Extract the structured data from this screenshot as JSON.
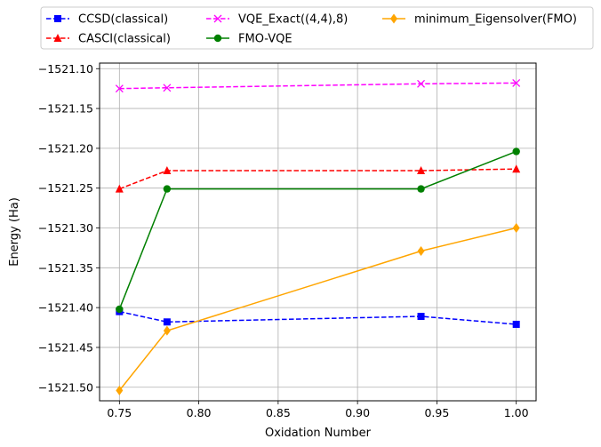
{
  "chart_data": {
    "type": "line",
    "xlabel": "Oxidation Number",
    "ylabel": "Energy (Ha)",
    "xlim": [
      0.7375,
      1.0125
    ],
    "ylim": [
      -1521.517,
      -1521.093
    ],
    "x_ticks": [
      0.75,
      0.8,
      0.85,
      0.9,
      0.95,
      1.0
    ],
    "x_tick_labels": [
      "0.75",
      "0.80",
      "0.85",
      "0.90",
      "0.95",
      "1.00"
    ],
    "y_ticks": [
      -1521.1,
      -1521.15,
      -1521.2,
      -1521.25,
      -1521.3,
      -1521.35,
      -1521.4,
      -1521.45,
      -1521.5
    ],
    "y_tick_labels": [
      "−1521.10",
      "−1521.15",
      "−1521.20",
      "−1521.25",
      "−1521.30",
      "−1521.35",
      "−1521.40",
      "−1521.45",
      "−1521.50"
    ],
    "grid": true,
    "legend_position": "top-center, outside plot",
    "series": [
      {
        "name": "CCSD(classical)",
        "color": "#0000ff",
        "linestyle": "dashed",
        "marker": "square",
        "x": [
          0.75,
          0.78,
          0.94,
          1.0
        ],
        "y": [
          -1521.405,
          -1521.418,
          -1521.411,
          -1521.421
        ]
      },
      {
        "name": "CASCI(classical)",
        "color": "#ff0000",
        "linestyle": "dashed",
        "marker": "triangle",
        "x": [
          0.75,
          0.78,
          0.94,
          1.0
        ],
        "y": [
          -1521.251,
          -1521.228,
          -1521.228,
          -1521.226
        ]
      },
      {
        "name": "VQE_Exact((4,4),8)",
        "color": "#ff00ff",
        "linestyle": "dashed",
        "marker": "x",
        "x": [
          0.75,
          0.78,
          0.94,
          1.0
        ],
        "y": [
          -1521.125,
          -1521.124,
          -1521.119,
          -1521.118
        ]
      },
      {
        "name": "FMO-VQE",
        "color": "#008000",
        "linestyle": "solid",
        "marker": "circle",
        "x": [
          0.75,
          0.78,
          0.94,
          1.0
        ],
        "y": [
          -1521.402,
          -1521.251,
          -1521.251,
          -1521.204
        ]
      },
      {
        "name": "minimum_Eigensolver(FMO)",
        "color": "#ffa500",
        "linestyle": "solid",
        "marker": "diamond",
        "x": [
          0.75,
          0.78,
          0.94,
          1.0
        ],
        "y": [
          -1521.504,
          -1521.429,
          -1521.329,
          -1521.3
        ]
      }
    ]
  }
}
